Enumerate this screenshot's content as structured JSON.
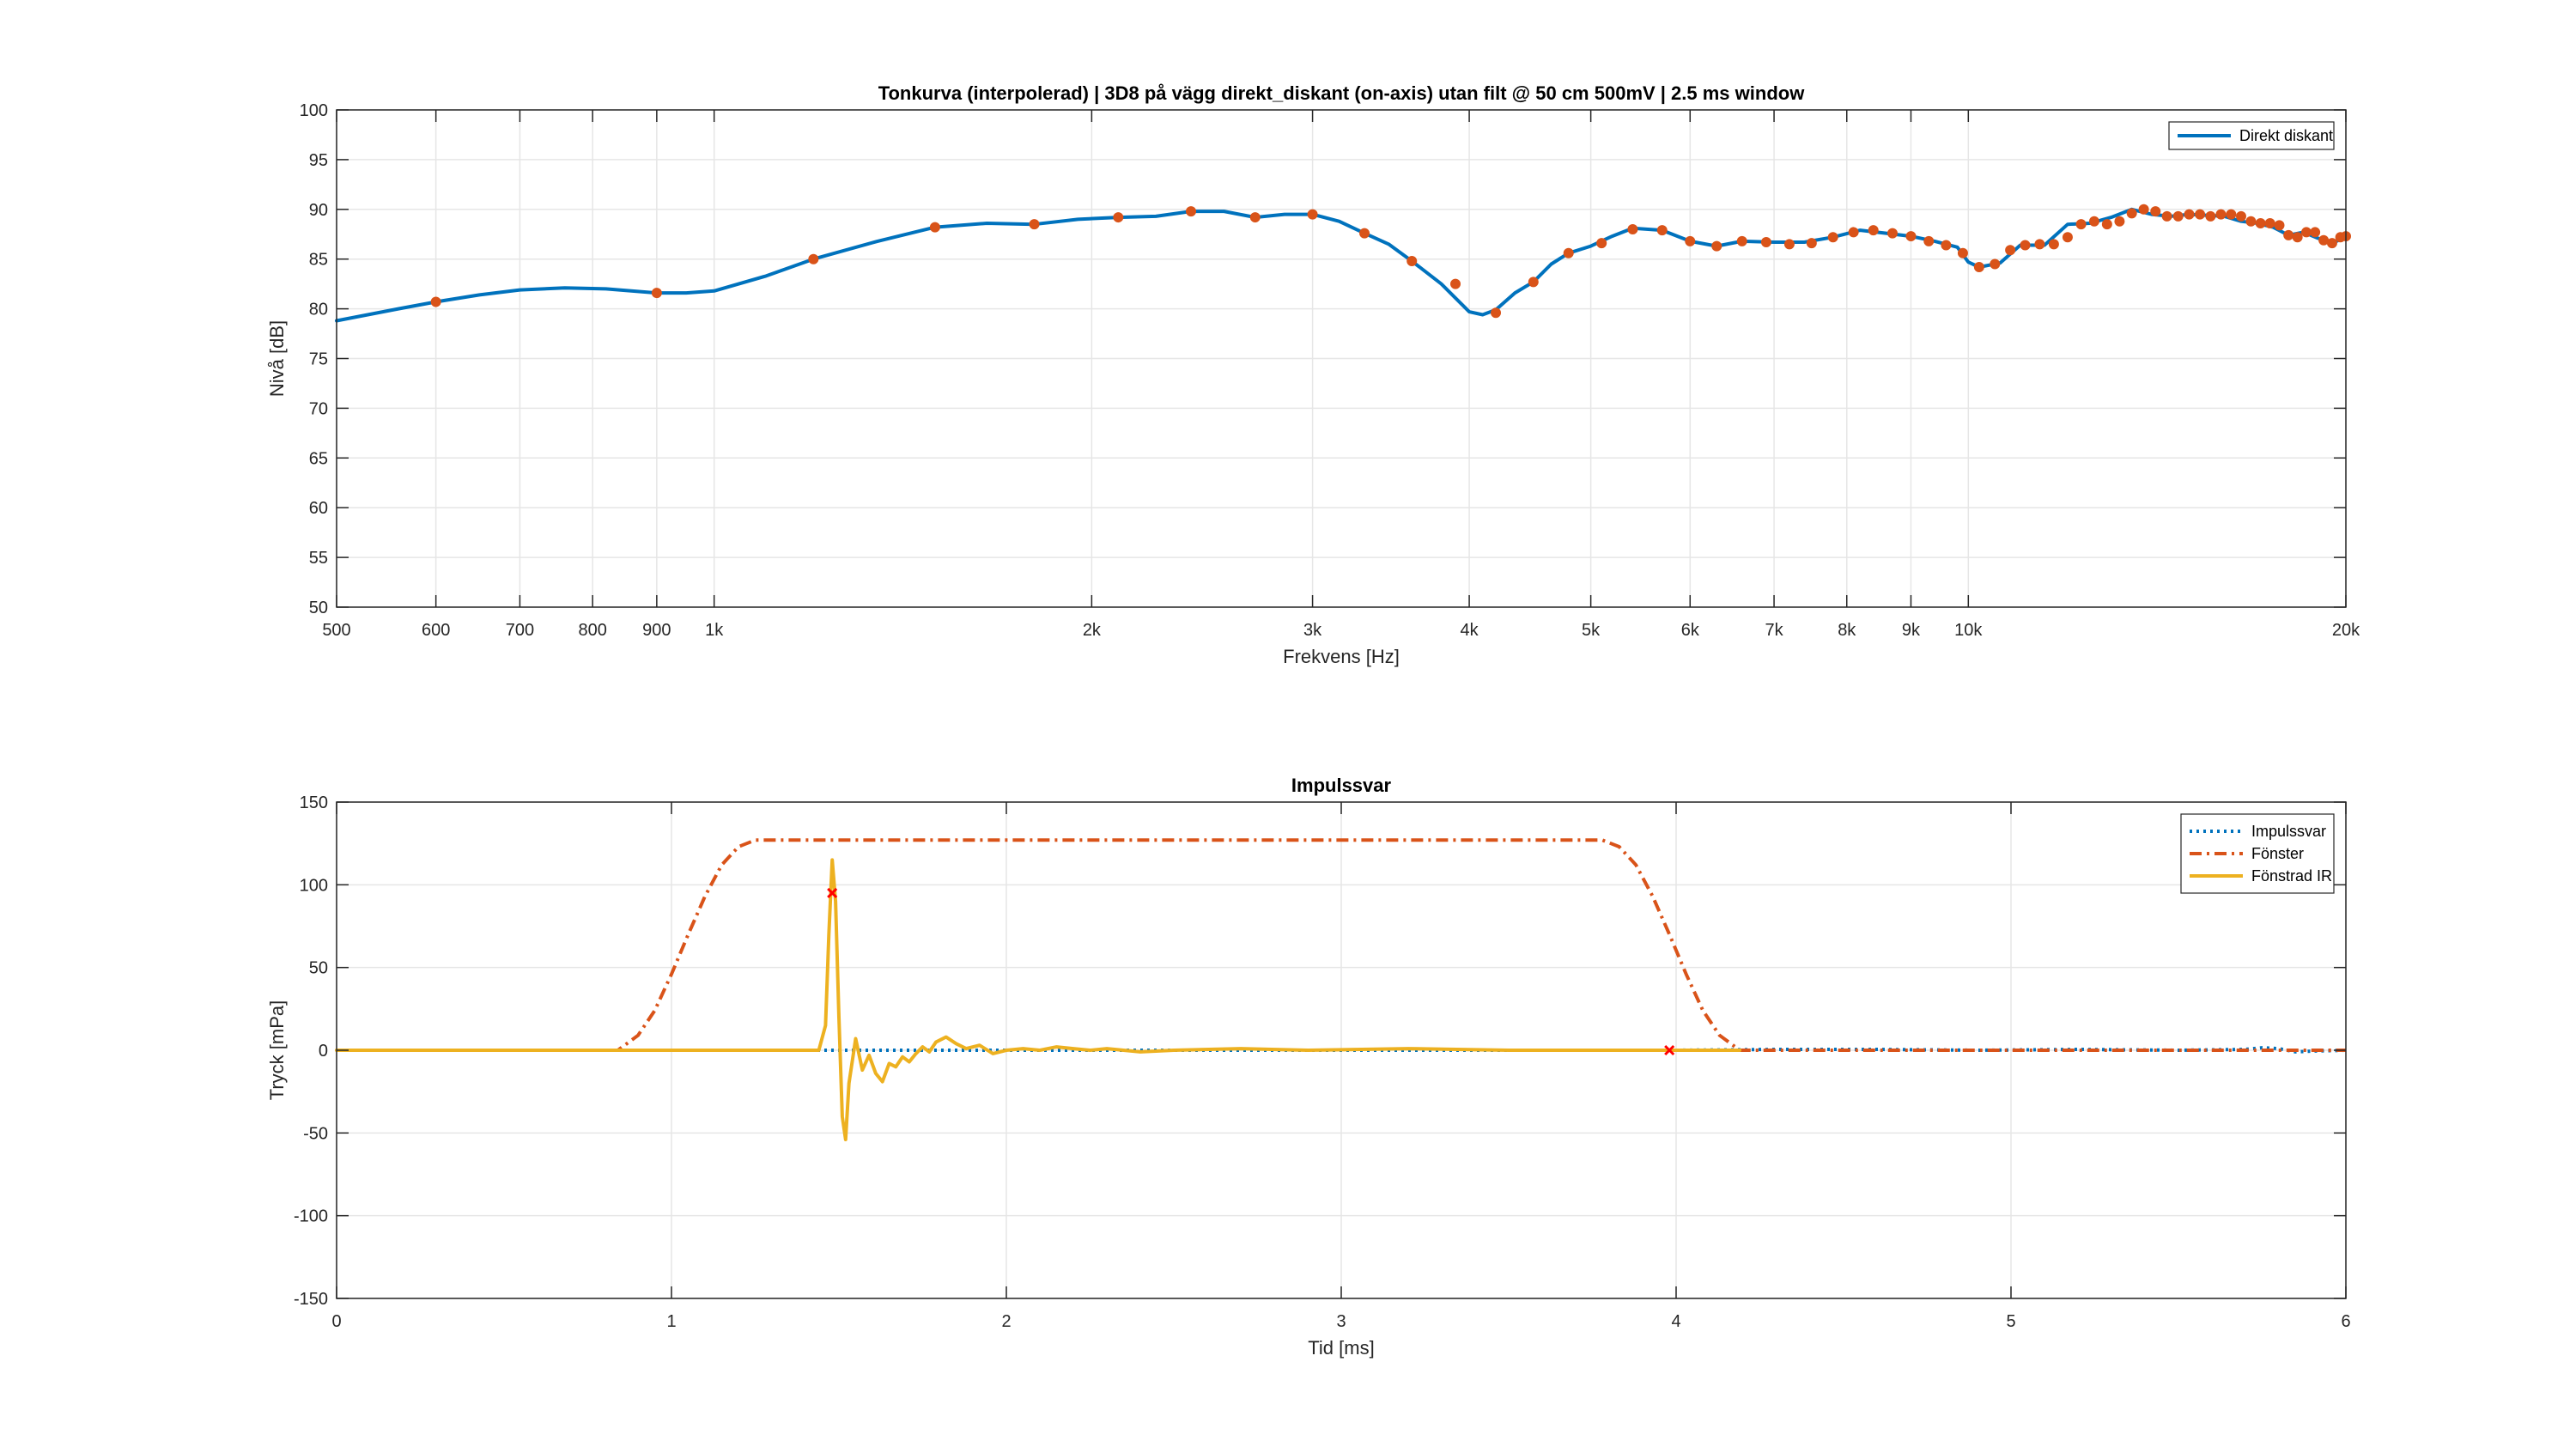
{
  "chart_data": [
    {
      "type": "line",
      "title": "Tonkurva (interpolerad) | 3D8 på vägg direkt_diskant (on-axis) utan filt @ 50 cm 500mV | 2.5 ms window",
      "xlabel": "Frekvens [Hz]",
      "ylabel": "Nivå [dB]",
      "xscale": "log",
      "xlim": [
        500,
        20000
      ],
      "ylim": [
        50,
        100
      ],
      "grid": true,
      "legend": "top-right",
      "xticks": [
        500,
        600,
        700,
        800,
        900,
        1000,
        2000,
        3000,
        4000,
        5000,
        6000,
        7000,
        8000,
        9000,
        10000,
        20000
      ],
      "xticklabels": [
        "500",
        "600",
        "700",
        "800",
        "900",
        "1k",
        "2k",
        "3k",
        "4k",
        "5k",
        "6k",
        "7k",
        "8k",
        "9k",
        "10k",
        "20k"
      ],
      "yticks": [
        50,
        55,
        60,
        65,
        70,
        75,
        80,
        85,
        90,
        95,
        100
      ],
      "yticklabels": [
        "50",
        "55",
        "60",
        "65",
        "70",
        "75",
        "80",
        "85",
        "90",
        "95",
        "100"
      ],
      "series": [
        {
          "name": "Direkt diskant",
          "color": "#0072BD",
          "style": "solid",
          "x": [
            500,
            560,
            600,
            650,
            700,
            760,
            820,
            900,
            950,
            1000,
            1100,
            1200,
            1350,
            1500,
            1650,
            1800,
            1950,
            2100,
            2250,
            2400,
            2550,
            2700,
            2850,
            3000,
            3150,
            3300,
            3450,
            3600,
            3800,
            4000,
            4100,
            4200,
            4350,
            4500,
            4650,
            4800,
            5000,
            5200,
            5400,
            5700,
            6000,
            6300,
            6600,
            7000,
            7400,
            7800,
            8200,
            8600,
            9000,
            9400,
            9800,
            10000,
            10200,
            10600,
            11000,
            11500,
            12000,
            12500,
            13000,
            13500,
            14000,
            14500,
            15000,
            15500,
            16000,
            16500,
            17000,
            17500,
            18000,
            18500,
            19000,
            19500,
            20000
          ],
          "values": [
            78.8,
            80.0,
            80.7,
            81.4,
            81.9,
            82.1,
            82.0,
            81.6,
            81.6,
            81.8,
            83.3,
            85.0,
            86.8,
            88.2,
            88.6,
            88.5,
            89.0,
            89.2,
            89.3,
            89.8,
            89.8,
            89.2,
            89.5,
            89.5,
            88.8,
            87.6,
            86.5,
            84.8,
            82.5,
            79.7,
            79.4,
            79.9,
            81.6,
            82.7,
            84.5,
            85.6,
            86.3,
            87.3,
            88.1,
            87.9,
            86.8,
            86.3,
            86.8,
            86.7,
            86.7,
            87.2,
            87.9,
            87.6,
            87.3,
            86.8,
            86.2,
            84.7,
            84.2,
            84.6,
            86.4,
            86.4,
            88.5,
            88.6,
            89.2,
            90.0,
            89.5,
            89.3,
            89.5,
            89.4,
            89.3,
            88.8,
            88.6,
            88.2,
            87.4,
            87.7,
            87.1,
            86.6,
            87.2
          ]
        }
      ],
      "markers": {
        "color": "#D95319",
        "x": [
          600,
          900,
          1200,
          1500,
          1800,
          2100,
          2400,
          2700,
          3000,
          3300,
          3600,
          3900,
          4200,
          4500,
          4800,
          5100,
          5400,
          5700,
          6000,
          6300,
          6600,
          6900,
          7200,
          7500,
          7800,
          8100,
          8400,
          8700,
          9000,
          9300,
          9600,
          9900,
          10200,
          10500,
          10800,
          11100,
          11400,
          11700,
          12000,
          12300,
          12600,
          12900,
          13200,
          13500,
          13800,
          14100,
          14400,
          14700,
          15000,
          15300,
          15600,
          15900,
          16200,
          16500,
          16800,
          17100,
          17400,
          17700,
          18000,
          18300,
          18600,
          18900,
          19200,
          19500,
          19800,
          20000
        ],
        "values": [
          80.7,
          81.6,
          85.0,
          88.2,
          88.5,
          89.2,
          89.8,
          89.2,
          89.5,
          87.6,
          84.8,
          82.5,
          79.6,
          82.7,
          85.6,
          86.6,
          88.0,
          87.9,
          86.8,
          86.3,
          86.8,
          86.7,
          86.5,
          86.6,
          87.2,
          87.7,
          87.9,
          87.6,
          87.3,
          86.8,
          86.4,
          85.6,
          84.2,
          84.5,
          85.9,
          86.4,
          86.5,
          86.5,
          87.2,
          88.5,
          88.8,
          88.5,
          88.8,
          89.6,
          90.0,
          89.8,
          89.3,
          89.3,
          89.5,
          89.5,
          89.3,
          89.5,
          89.5,
          89.3,
          88.8,
          88.6,
          88.6,
          88.4,
          87.4,
          87.2,
          87.7,
          87.7,
          86.9,
          86.6,
          87.2,
          87.3
        ]
      }
    },
    {
      "type": "line",
      "title": "Impulssvar",
      "xlabel": "Tid [ms]",
      "ylabel": "Tryck [mPa]",
      "xlim": [
        0,
        6
      ],
      "ylim": [
        -150,
        150
      ],
      "grid": true,
      "legend": "top-right",
      "xticks": [
        0,
        1,
        2,
        3,
        4,
        5,
        6
      ],
      "xticklabels": [
        "0",
        "1",
        "2",
        "3",
        "4",
        "5",
        "6"
      ],
      "yticks": [
        -150,
        -100,
        -50,
        0,
        50,
        100,
        150
      ],
      "yticklabels": [
        "-150",
        "-100",
        "-50",
        "0",
        "50",
        "100",
        "150"
      ],
      "series": [
        {
          "name": "Impulssvar",
          "color": "#0072BD",
          "style": "dotted",
          "x": [
            0,
            4.0,
            4.3,
            4.6,
            4.9,
            5.2,
            5.5,
            5.7,
            5.75,
            5.8,
            5.85,
            5.9,
            6.0
          ],
          "values": [
            0,
            0,
            0.5,
            0.5,
            0,
            0.5,
            0,
            0.5,
            1.5,
            1.0,
            -1.0,
            -0.5,
            0
          ]
        },
        {
          "name": "Fönster",
          "color": "#D95319",
          "style": "dashdot",
          "x": [
            0,
            0.84,
            0.9,
            0.95,
            1.0,
            1.05,
            1.1,
            1.15,
            1.2,
            1.25,
            3.78,
            3.83,
            3.88,
            3.93,
            3.98,
            4.03,
            4.08,
            4.13,
            4.19,
            6.0
          ],
          "values": [
            0,
            0,
            9,
            24,
            46,
            70,
            93,
            112,
            123,
            127,
            127,
            123,
            112,
            93,
            70,
            46,
            24,
            9,
            0,
            0
          ]
        },
        {
          "name": "Fönstrad IR",
          "color": "#EDB120",
          "style": "solid",
          "x": [
            0,
            1.44,
            1.46,
            1.47,
            1.48,
            1.49,
            1.5,
            1.51,
            1.52,
            1.53,
            1.55,
            1.57,
            1.59,
            1.61,
            1.63,
            1.65,
            1.67,
            1.69,
            1.71,
            1.73,
            1.75,
            1.77,
            1.79,
            1.82,
            1.85,
            1.88,
            1.92,
            1.96,
            2.0,
            2.05,
            2.1,
            2.15,
            2.2,
            2.25,
            2.3,
            2.4,
            2.5,
            2.7,
            2.9,
            3.2,
            3.5,
            4.19
          ],
          "values": [
            0,
            0,
            15,
            70,
            115,
            90,
            20,
            -40,
            -54,
            -20,
            7,
            -12,
            -3,
            -14,
            -19,
            -8,
            -10,
            -4,
            -7,
            -2,
            2,
            -1,
            5,
            8,
            4,
            1,
            3,
            -2,
            0,
            1,
            0,
            2,
            1,
            0,
            1,
            -1,
            0,
            1,
            0,
            1,
            0,
            0
          ]
        }
      ],
      "markers": {
        "color": "#FF0000",
        "symbol": "x",
        "x": [
          1.48,
          3.98
        ],
        "values": [
          95,
          0
        ]
      }
    }
  ]
}
